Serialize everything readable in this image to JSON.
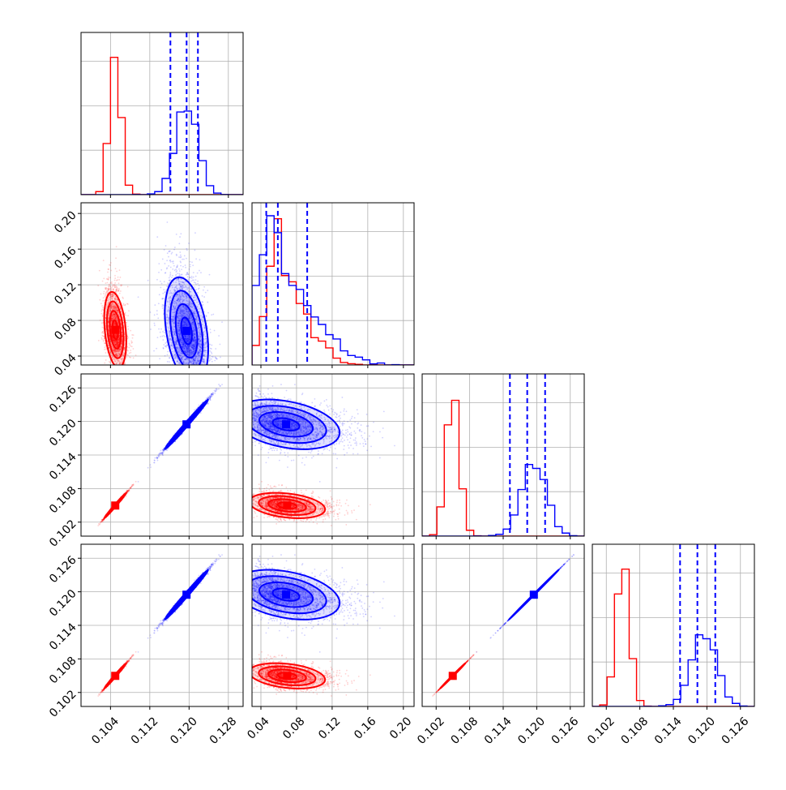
{
  "colors": {
    "red": "#ff0000",
    "blue": "#0000ff",
    "grid": "#b0b0b0",
    "frame": "#000000"
  },
  "chart_data": {
    "type": "corner",
    "title": "",
    "grid": true,
    "parameters": [
      {
        "range": [
          0.098,
          0.131
        ],
        "ticks": [
          "0.104",
          "0.112",
          "0.120",
          "0.128"
        ],
        "tick_values": [
          0.104,
          0.112,
          0.12,
          0.128
        ]
      },
      {
        "range": [
          0.03,
          0.212
        ],
        "ticks": [
          "0.04",
          "0.08",
          "0.12",
          "0.16",
          "0.20"
        ],
        "tick_values": [
          0.04,
          0.08,
          0.12,
          0.16,
          0.2
        ]
      },
      {
        "range": [
          0.0995,
          0.1285
        ],
        "ticks": [
          "0.102",
          "0.108",
          "0.114",
          "0.120",
          "0.126"
        ],
        "tick_values": [
          0.102,
          0.108,
          0.114,
          0.12,
          0.126
        ]
      },
      {
        "range": [
          0.0995,
          0.1285
        ],
        "ticks": [
          "0.102",
          "0.108",
          "0.114",
          "0.120",
          "0.126"
        ],
        "tick_values": [
          0.102,
          0.108,
          0.114,
          0.12,
          0.126
        ]
      }
    ],
    "series": [
      {
        "color": "red",
        "means": [
          0.105,
          0.064,
          0.105,
          0.105
        ],
        "sds": [
          0.0011,
          0.014,
          0.0011,
          0.0011
        ],
        "corr_01": -0.3,
        "hist_peaks": [
          0.92,
          0.98,
          0.91,
          0.92
        ]
      },
      {
        "color": "blue",
        "means": [
          0.1195,
          0.06,
          0.1195,
          0.1195
        ],
        "sds": [
          0.0022,
          0.02,
          0.0021,
          0.0021
        ],
        "corr_01": -0.35,
        "hist_peaks": [
          0.56,
          1.0,
          0.48,
          0.48
        ],
        "quantiles": [
          [
            0.1162,
            0.1195,
            0.1218
          ],
          [
            0.046,
            0.059,
            0.092
          ],
          [
            0.1152,
            0.1183,
            0.1215
          ],
          [
            0.1152,
            0.1183,
            0.1215
          ]
        ]
      }
    ],
    "hist_y_ticks": 3
  }
}
